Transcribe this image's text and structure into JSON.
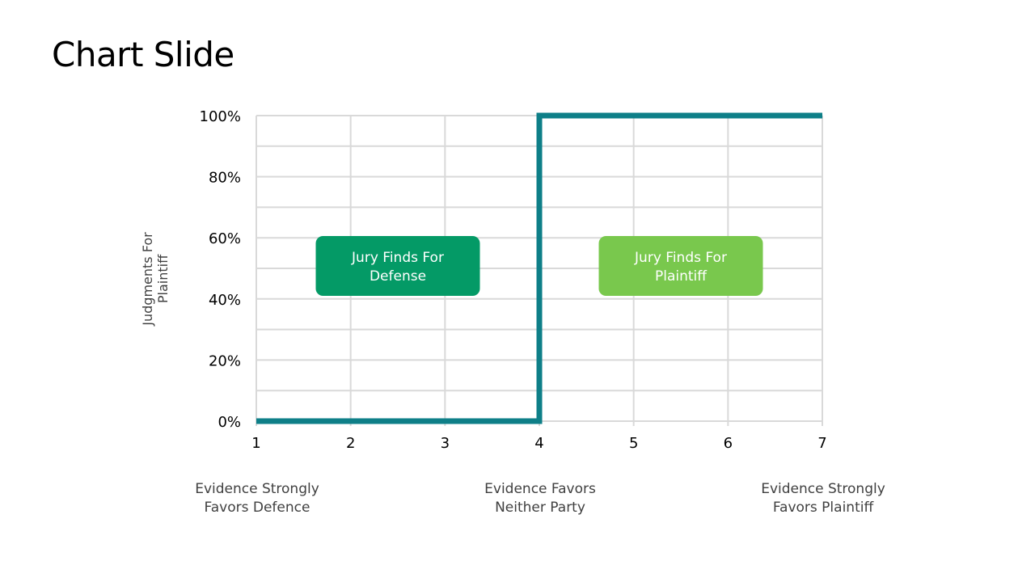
{
  "slide": {
    "title": "Chart Slide"
  },
  "chart_data": {
    "type": "line",
    "step": true,
    "title": "",
    "xlabel": "",
    "ylabel": "Judgments For Plaintiff",
    "x": [
      1,
      2,
      3,
      4,
      4,
      5,
      6,
      7
    ],
    "y": [
      0,
      0,
      0,
      0,
      100,
      100,
      100,
      100
    ],
    "xlim": [
      1,
      7
    ],
    "ylim": [
      0,
      100
    ],
    "x_ticks": [
      "1",
      "2",
      "3",
      "4",
      "5",
      "6",
      "7"
    ],
    "y_ticks": [
      "0%",
      "20%",
      "40%",
      "60%",
      "80%",
      "100%"
    ],
    "grid": true,
    "line_color": "#0e7f88",
    "x_annotations": [
      {
        "x": 1,
        "lines": [
          "Evidence Strongly",
          "Favors Defence"
        ]
      },
      {
        "x": 4,
        "lines": [
          "Evidence Favors",
          "Neither Party"
        ]
      },
      {
        "x": 7,
        "lines": [
          "Evidence Strongly",
          "Favors Plaintiff"
        ]
      }
    ],
    "callouts": [
      {
        "lines": [
          "Jury Finds For",
          "Defense"
        ],
        "color": "#049a66",
        "x_center": 2.5,
        "y_center": 50
      },
      {
        "lines": [
          "Jury Finds For",
          "Plaintiff"
        ],
        "color": "#79c84d",
        "x_center": 5.5,
        "y_center": 50
      }
    ]
  }
}
